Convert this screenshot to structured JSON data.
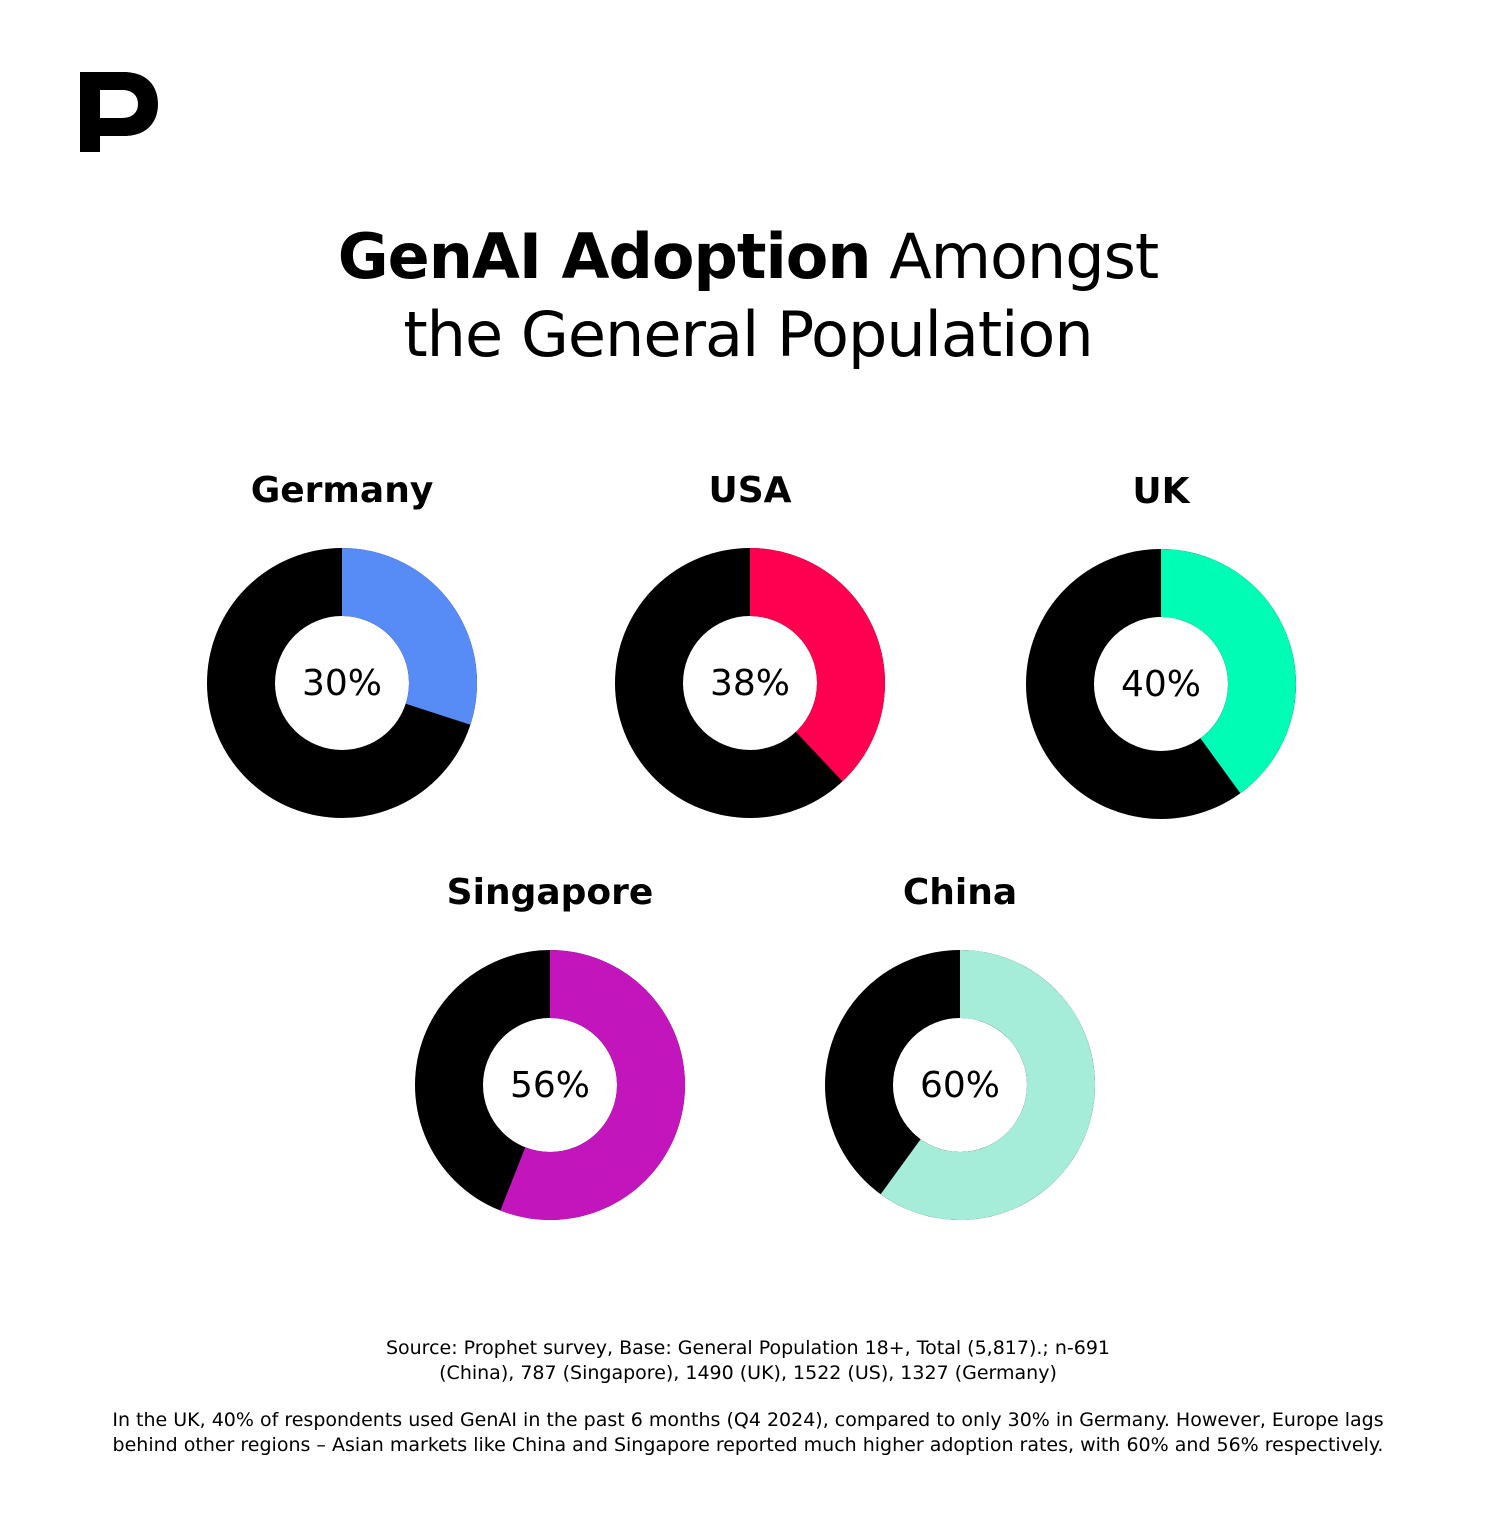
{
  "header": {
    "title_bold": "GenAI Adoption",
    "title_rest": "Amongst",
    "title_line2": "the General Population"
  },
  "chart_data": [
    {
      "type": "donut",
      "title": "Germany",
      "values": [
        30
      ],
      "value_labels": [
        "30%"
      ],
      "color": "#578bf5"
    },
    {
      "type": "donut",
      "title": "USA",
      "values": [
        38
      ],
      "value_labels": [
        "38%"
      ],
      "color": "#ff0050"
    },
    {
      "type": "donut",
      "title": "UK",
      "values": [
        40
      ],
      "value_labels": [
        "40%"
      ],
      "color": "#00fdb5"
    },
    {
      "type": "donut",
      "title": "Singapore",
      "values": [
        56
      ],
      "value_labels": [
        "56%"
      ],
      "color": "#c216bc"
    },
    {
      "type": "donut",
      "title": "China",
      "values": [
        60
      ],
      "value_labels": [
        "60%"
      ],
      "color": "#a5edd9"
    }
  ],
  "footer": {
    "source": "Source: Prophet survey, Base: General Population 18+, Total (5,817).; n-691 (China), 787 (Singapore), 1490 (UK), 1522 (US), 1327 (Germany)",
    "note": "In the UK, 40% of respondents used GenAI in the past 6 months (Q4 2024), compared to only 30% in Germany. However, Europe lags behind other regions – Asian markets like China and Singapore reported much higher adoption rates, with 60% and 56% respectively."
  }
}
